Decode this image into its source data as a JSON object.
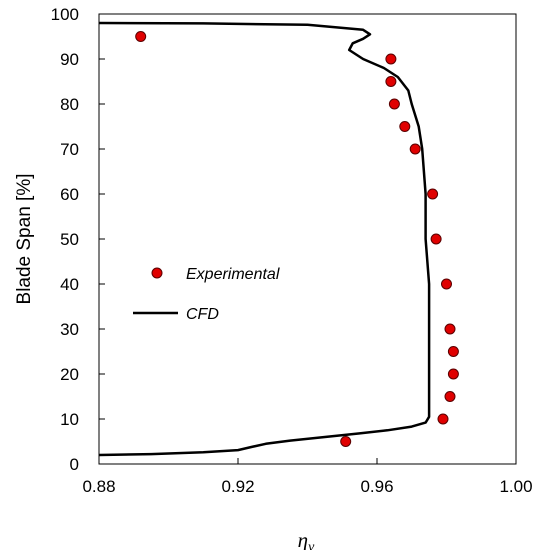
{
  "chart_data": {
    "type": "scatter",
    "xlabel": "η",
    "xlabel_subscript": "v",
    "ylabel": "Blade Span [%]",
    "xlim": [
      0.88,
      1.0
    ],
    "ylim": [
      0,
      100
    ],
    "x_ticks": [
      0.88,
      0.92,
      0.96,
      1.0
    ],
    "x_tick_labels": [
      "0.88",
      "0.92",
      "0.96",
      "1.00"
    ],
    "y_ticks": [
      0,
      10,
      20,
      30,
      40,
      50,
      60,
      70,
      80,
      90,
      100
    ],
    "y_tick_labels": [
      "0",
      "10",
      "20",
      "30",
      "40",
      "50",
      "60",
      "70",
      "80",
      "90",
      "100"
    ],
    "grid": false,
    "legend_placement": "center-left",
    "series": [
      {
        "name": "Experimental",
        "kind": "markers",
        "color": "#e00000",
        "points": [
          [
            0.951,
            5
          ],
          [
            0.979,
            10
          ],
          [
            0.981,
            15
          ],
          [
            0.982,
            20
          ],
          [
            0.982,
            25
          ],
          [
            0.981,
            30
          ],
          [
            0.98,
            40
          ],
          [
            0.977,
            50
          ],
          [
            0.976,
            60
          ],
          [
            0.971,
            70
          ],
          [
            0.968,
            75
          ],
          [
            0.965,
            80
          ],
          [
            0.964,
            85
          ],
          [
            0.964,
            90
          ],
          [
            0.892,
            95
          ]
        ]
      },
      {
        "name": "CFD",
        "kind": "line",
        "color": "#000000",
        "points": [
          [
            0.88,
            2
          ],
          [
            0.895,
            2.2
          ],
          [
            0.91,
            2.6
          ],
          [
            0.92,
            3.1
          ],
          [
            0.924,
            3.8
          ],
          [
            0.928,
            4.5
          ],
          [
            0.935,
            5.2
          ],
          [
            0.945,
            6.0
          ],
          [
            0.955,
            6.8
          ],
          [
            0.963,
            7.5
          ],
          [
            0.97,
            8.3
          ],
          [
            0.974,
            9.2
          ],
          [
            0.975,
            10.5
          ],
          [
            0.975,
            15
          ],
          [
            0.975,
            20
          ],
          [
            0.975,
            30
          ],
          [
            0.975,
            40
          ],
          [
            0.974,
            50
          ],
          [
            0.974,
            60
          ],
          [
            0.973,
            70
          ],
          [
            0.972,
            75
          ],
          [
            0.97,
            80
          ],
          [
            0.969,
            83
          ],
          [
            0.966,
            86
          ],
          [
            0.962,
            88
          ],
          [
            0.956,
            90
          ],
          [
            0.952,
            92
          ],
          [
            0.953,
            93.5
          ],
          [
            0.956,
            94.5
          ],
          [
            0.958,
            95.5
          ],
          [
            0.956,
            96.5
          ],
          [
            0.94,
            97.6
          ],
          [
            0.91,
            97.9
          ],
          [
            0.88,
            98
          ]
        ]
      }
    ]
  }
}
